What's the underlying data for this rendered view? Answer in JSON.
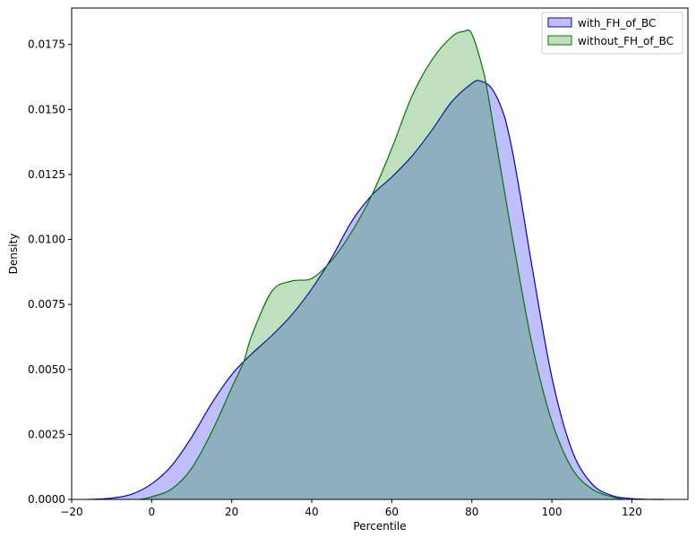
{
  "chart_data": {
    "type": "area",
    "title": "",
    "xlabel": "Percentile",
    "ylabel": "Density",
    "xlim": [
      -20,
      134
    ],
    "ylim": [
      0,
      0.0189
    ],
    "xticks": [
      -20,
      0,
      20,
      40,
      60,
      80,
      100,
      120
    ],
    "xtick_labels": [
      "−20",
      "0",
      "20",
      "40",
      "60",
      "80",
      "100",
      "120"
    ],
    "yticks": [
      0,
      0.0025,
      0.005,
      0.0075,
      0.01,
      0.0125,
      0.015,
      0.0175
    ],
    "ytick_labels": [
      "0.0000",
      "0.0025",
      "0.0050",
      "0.0075",
      "0.0100",
      "0.0125",
      "0.0150",
      "0.0175"
    ],
    "grid": false,
    "legend_position": "top-right",
    "series": [
      {
        "name": "with_FH_of_BC",
        "line_color": "#0000cc",
        "fill_color": "#0000ff",
        "x": [
          -16,
          -10,
          -5,
          0,
          5,
          10,
          15,
          20,
          25,
          30,
          35,
          40,
          45,
          50,
          55,
          60,
          65,
          70,
          75,
          80,
          82,
          85,
          88,
          90,
          92,
          95,
          100,
          105,
          110,
          115,
          120,
          125,
          128
        ],
        "y": [
          0,
          5e-05,
          0.0002,
          0.0006,
          0.0013,
          0.0024,
          0.0037,
          0.0048,
          0.0056,
          0.0063,
          0.0071,
          0.0081,
          0.0093,
          0.0107,
          0.0117,
          0.0124,
          0.0132,
          0.0142,
          0.0153,
          0.016,
          0.0161,
          0.0158,
          0.0148,
          0.0135,
          0.0118,
          0.009,
          0.0047,
          0.0019,
          0.0006,
          0.00015,
          3e-05,
          0,
          0
        ]
      },
      {
        "name": "without_FH_of_BC",
        "line_color": "#007700",
        "fill_color": "#008000",
        "x": [
          -3,
          0,
          5,
          10,
          15,
          20,
          23,
          25,
          30,
          35,
          40,
          45,
          50,
          55,
          60,
          65,
          70,
          75,
          78,
          80,
          83,
          85,
          88,
          90,
          95,
          100,
          105,
          110,
          115,
          118
        ],
        "y": [
          0,
          0.0001,
          0.0004,
          0.0012,
          0.0026,
          0.0043,
          0.0053,
          0.0063,
          0.008,
          0.0084,
          0.0085,
          0.0092,
          0.0103,
          0.0117,
          0.0135,
          0.0155,
          0.0169,
          0.0178,
          0.018,
          0.0179,
          0.0164,
          0.0147,
          0.012,
          0.0102,
          0.006,
          0.003,
          0.0012,
          0.0004,
          0.0001,
          0
        ]
      }
    ]
  }
}
